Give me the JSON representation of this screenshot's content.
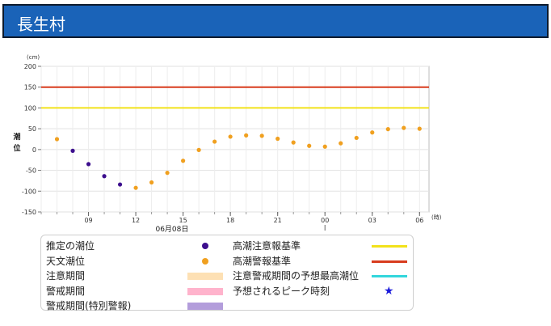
{
  "header": {
    "title": "長生村"
  },
  "chart_data": {
    "type": "scatter",
    "title": "",
    "ylabel": "潮位",
    "y_unit": "(cm)",
    "x_unit": "(時)",
    "date_label": "06月08日",
    "ylim": [
      -150,
      200
    ],
    "yticks": [
      -150,
      -100,
      -50,
      0,
      50,
      100,
      150,
      200
    ],
    "xticks": [
      {
        "hour": 9,
        "label": "09"
      },
      {
        "hour": 12,
        "label": "12"
      },
      {
        "hour": 15,
        "label": "15"
      },
      {
        "hour": 18,
        "label": "18"
      },
      {
        "hour": 21,
        "label": "21"
      },
      {
        "hour": 24,
        "label": "00"
      },
      {
        "hour": 27,
        "label": "03"
      },
      {
        "hour": 30,
        "label": "06"
      }
    ],
    "xlim": [
      6.0,
      30.6
    ],
    "grid": true,
    "thresholds": [
      {
        "name": "高潮警報基準",
        "value": 150,
        "color": "#d83c1e"
      },
      {
        "name": "高潮注意報基準",
        "value": 100,
        "color": "#f2e21a"
      }
    ],
    "series": [
      {
        "name": "推定の潮位",
        "color": "#3d0f8e",
        "points": [
          [
            8,
            -3
          ],
          [
            9,
            -35
          ],
          [
            10,
            -64
          ],
          [
            11,
            -84
          ]
        ]
      },
      {
        "name": "天文潮位",
        "color": "#f0a020",
        "points": [
          [
            7,
            25
          ],
          [
            12,
            -92
          ],
          [
            13,
            -79
          ],
          [
            14,
            -56
          ],
          [
            15,
            -27
          ],
          [
            16,
            -1
          ],
          [
            17,
            19
          ],
          [
            18,
            31
          ],
          [
            19,
            34
          ],
          [
            20,
            33
          ],
          [
            21,
            26
          ],
          [
            22,
            17
          ],
          [
            23,
            9
          ],
          [
            24,
            7
          ],
          [
            25,
            15
          ],
          [
            26,
            28
          ],
          [
            27,
            41
          ],
          [
            28,
            49
          ],
          [
            29,
            52
          ],
          [
            30,
            50
          ]
        ]
      }
    ]
  },
  "legend": {
    "items": [
      {
        "label": "推定の潮位",
        "kind": "dot",
        "color": "#3d0f8e"
      },
      {
        "label": "高潮注意報基準",
        "kind": "line",
        "color": "#f2e21a"
      },
      {
        "label": "天文潮位",
        "kind": "dot",
        "color": "#f0a020"
      },
      {
        "label": "高潮警報基準",
        "kind": "line",
        "color": "#d83c1e"
      },
      {
        "label": "注意期間",
        "kind": "box",
        "color": "#fde0b4"
      },
      {
        "label": "注意警戒期間の予想最高潮位",
        "kind": "line",
        "color": "#33d6dc"
      },
      {
        "label": "警戒期間",
        "kind": "box",
        "color": "#ffb3cc"
      },
      {
        "label": "予想されるピーク時刻",
        "kind": "star",
        "color": "#1a1adb",
        "symbol": "★"
      },
      {
        "label": "警戒期間(特別警報)",
        "kind": "box",
        "color": "#b39ddb"
      }
    ]
  }
}
